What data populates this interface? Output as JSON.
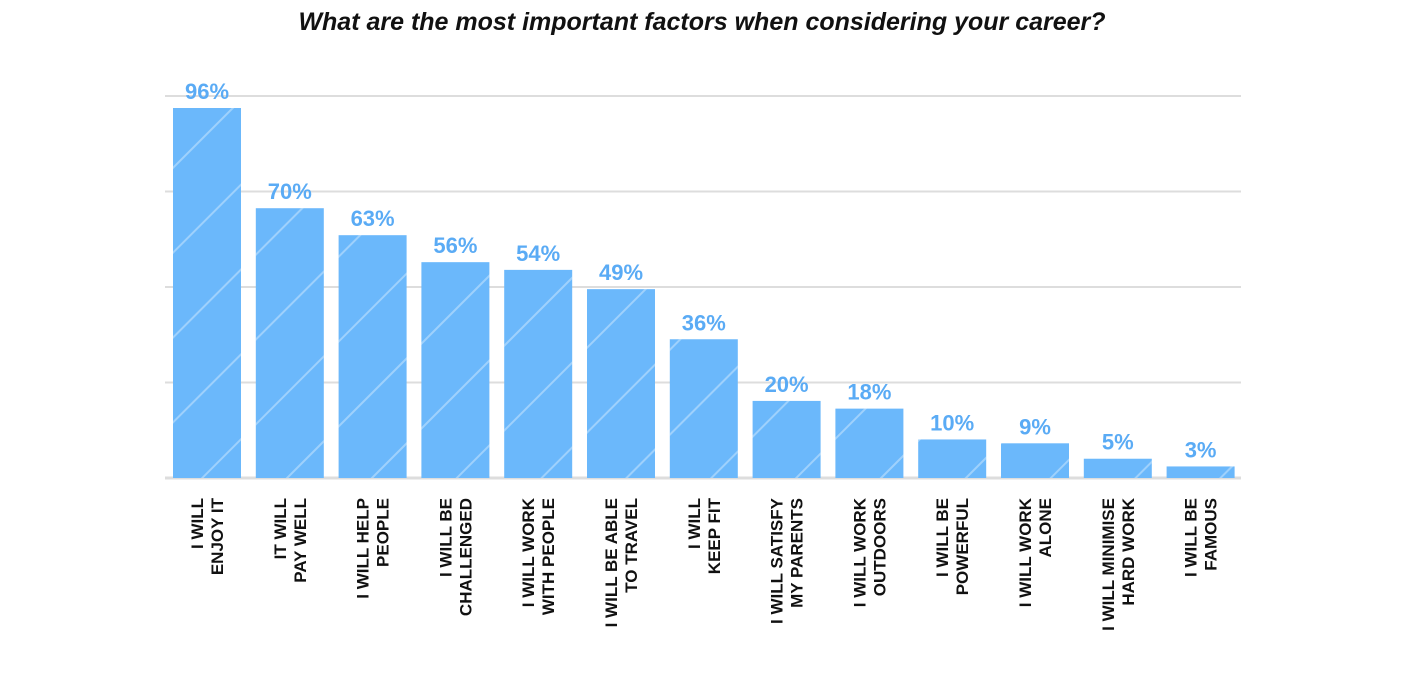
{
  "chart_data": {
    "type": "bar",
    "title": "What are the most important factors when considering your career?",
    "xlabel": "",
    "ylabel": "",
    "ylim": [
      0,
      96
    ],
    "grid": true,
    "categories": [
      [
        "I WILL",
        "ENJOY IT"
      ],
      [
        "IT WILL",
        "PAY WELL"
      ],
      [
        "I WILL HELP",
        "PEOPLE"
      ],
      [
        "I WILL BE",
        "CHALLENGED"
      ],
      [
        "I WILL WORK",
        "WITH PEOPLE"
      ],
      [
        "I WILL BE ABLE",
        "TO TRAVEL"
      ],
      [
        "I WILL",
        "KEEP FIT"
      ],
      [
        "I WILL  SATISFY",
        "MY PARENTS"
      ],
      [
        "I WILL WORK",
        "OUTDOORS"
      ],
      [
        "I WILL BE",
        "POWERFUL"
      ],
      [
        "I WILL WORK",
        "ALONE"
      ],
      [
        "I WILL MINIMISE",
        "HARD WORK"
      ],
      [
        "I WILL BE",
        "FAMOUS"
      ]
    ],
    "values": [
      96,
      70,
      63,
      56,
      54,
      49,
      36,
      20,
      18,
      10,
      9,
      5,
      3
    ],
    "value_labels": [
      "96%",
      "70%",
      "63%",
      "56%",
      "54%",
      "49%",
      "36%",
      "20%",
      "18%",
      "10%",
      "9%",
      "5%",
      "3%"
    ]
  },
  "colors": {
    "bar": "#6bb8fb",
    "bar_light": "#9ad0ff",
    "value_label": "#5aabf5",
    "grid": "#dddddd",
    "text": "#111111"
  }
}
